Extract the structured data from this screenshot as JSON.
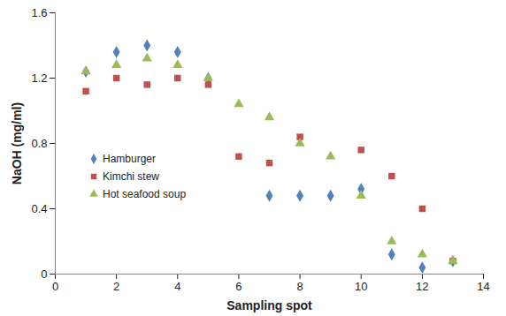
{
  "chart_data": {
    "type": "scatter",
    "x_label": "Sampling spot",
    "y_label": "NaOH (mg/ml)",
    "x": [
      1,
      2,
      3,
      4,
      5,
      6,
      7,
      8,
      9,
      10,
      11,
      12,
      13
    ],
    "series": [
      {
        "name": "Hamburger",
        "color": "#4f81bd",
        "marker": "diamond",
        "values": [
          1.24,
          1.36,
          1.4,
          1.36,
          1.2,
          null,
          0.48,
          0.48,
          0.48,
          0.52,
          0.12,
          0.04,
          0.08
        ]
      },
      {
        "name": "Kimchi stew",
        "color": "#c0504d",
        "marker": "square",
        "values": [
          1.12,
          1.2,
          1.16,
          1.2,
          1.16,
          0.72,
          0.68,
          0.84,
          null,
          0.76,
          0.6,
          0.4,
          0.08
        ]
      },
      {
        "name": "Hot seafood soup",
        "color": "#9bbb59",
        "marker": "triangle",
        "values": [
          1.24,
          1.28,
          1.32,
          1.28,
          1.2,
          1.04,
          0.96,
          0.8,
          0.72,
          0.48,
          0.2,
          0.12,
          0.08
        ]
      }
    ],
    "xlim": [
      0,
      14
    ],
    "xticks": [
      0,
      2,
      4,
      6,
      8,
      10,
      12,
      14
    ],
    "ylim": [
      0,
      1.6
    ],
    "yticks": [
      0,
      0.4,
      0.8,
      1.2,
      1.6
    ],
    "grid": false,
    "legend": "left"
  }
}
